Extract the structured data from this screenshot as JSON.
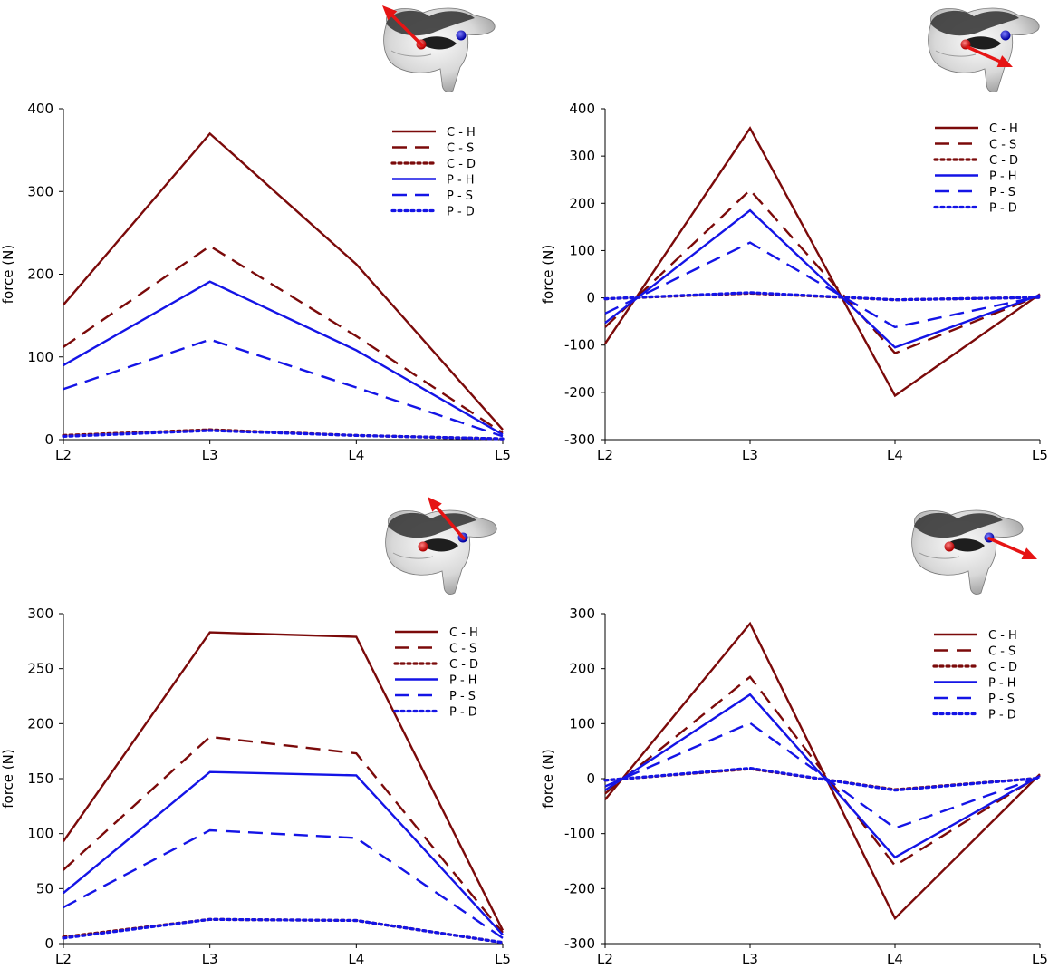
{
  "colors": {
    "C": "#7b0a0a",
    "P": "#1414e6",
    "arrow": "#e61414",
    "axis": "#000000"
  },
  "chart_data": [
    {
      "type": "line",
      "categories": [
        "L2",
        "L3",
        "L4",
        "L5"
      ],
      "ylabel": "force (N)",
      "ylim": [
        0,
        400
      ],
      "yticks": [
        0,
        100,
        200,
        300,
        400
      ],
      "legend_position": "top-right",
      "series": [
        {
          "name": "C - H",
          "group": "C",
          "style": "solid",
          "values": [
            163,
            370,
            212,
            12
          ]
        },
        {
          "name": "C - S",
          "group": "C",
          "style": "dashed",
          "values": [
            112,
            234,
            125,
            8
          ]
        },
        {
          "name": "C - D",
          "group": "C",
          "style": "dotted",
          "values": [
            5,
            12,
            5,
            1
          ]
        },
        {
          "name": "P - H",
          "group": "P",
          "style": "solid",
          "values": [
            90,
            191,
            108,
            6
          ]
        },
        {
          "name": "P - S",
          "group": "P",
          "style": "dashed",
          "values": [
            61,
            121,
            63,
            4
          ]
        },
        {
          "name": "P - D",
          "group": "P",
          "style": "dotted",
          "values": [
            4,
            11,
            5,
            1
          ]
        }
      ]
    },
    {
      "type": "line",
      "categories": [
        "L2",
        "L3",
        "L4",
        "L5"
      ],
      "ylabel": "force (N)",
      "ylim": [
        -300,
        400
      ],
      "yticks": [
        -300,
        -200,
        -100,
        0,
        100,
        200,
        300,
        400
      ],
      "legend_position": "top-right",
      "series": [
        {
          "name": "C - H",
          "group": "C",
          "style": "solid",
          "values": [
            -97,
            359,
            -207,
            8
          ]
        },
        {
          "name": "C - S",
          "group": "C",
          "style": "dashed",
          "values": [
            -62,
            228,
            -117,
            5
          ]
        },
        {
          "name": "C - D",
          "group": "C",
          "style": "dotted",
          "values": [
            -2,
            10,
            -4,
            1
          ]
        },
        {
          "name": "P - H",
          "group": "P",
          "style": "solid",
          "values": [
            -53,
            185,
            -105,
            6
          ]
        },
        {
          "name": "P - S",
          "group": "P",
          "style": "dashed",
          "values": [
            -33,
            117,
            -62,
            3
          ]
        },
        {
          "name": "P - D",
          "group": "P",
          "style": "dotted",
          "values": [
            -2,
            11,
            -4,
            1
          ]
        }
      ]
    },
    {
      "type": "line",
      "categories": [
        "L2",
        "L3",
        "L4",
        "L5"
      ],
      "ylabel": "force (N)",
      "ylim": [
        0,
        300
      ],
      "yticks": [
        0,
        50,
        100,
        150,
        200,
        250,
        300
      ],
      "legend_position": "top-right",
      "series": [
        {
          "name": "C - H",
          "group": "C",
          "style": "solid",
          "values": [
            93,
            283,
            279,
            12
          ]
        },
        {
          "name": "C - S",
          "group": "C",
          "style": "dashed",
          "values": [
            67,
            188,
            173,
            10
          ]
        },
        {
          "name": "C - D",
          "group": "C",
          "style": "dotted",
          "values": [
            6,
            22,
            21,
            1
          ]
        },
        {
          "name": "P - H",
          "group": "P",
          "style": "solid",
          "values": [
            46,
            156,
            153,
            8
          ]
        },
        {
          "name": "P - S",
          "group": "P",
          "style": "dashed",
          "values": [
            33,
            103,
            96,
            5
          ]
        },
        {
          "name": "P - D",
          "group": "P",
          "style": "dotted",
          "values": [
            5,
            22,
            21,
            1
          ]
        }
      ]
    },
    {
      "type": "line",
      "categories": [
        "L2",
        "L3",
        "L4",
        "L5"
      ],
      "ylabel": "force (N)",
      "ylim": [
        -300,
        300
      ],
      "yticks": [
        -300,
        -200,
        -100,
        0,
        100,
        200,
        300
      ],
      "legend_position": "top-right",
      "series": [
        {
          "name": "C - H",
          "group": "C",
          "style": "solid",
          "values": [
            -38,
            282,
            -254,
            8
          ]
        },
        {
          "name": "C - S",
          "group": "C",
          "style": "dashed",
          "values": [
            -27,
            185,
            -158,
            6
          ]
        },
        {
          "name": "C - D",
          "group": "C",
          "style": "dotted",
          "values": [
            -3,
            18,
            -20,
            1
          ]
        },
        {
          "name": "P - H",
          "group": "P",
          "style": "solid",
          "values": [
            -21,
            153,
            -143,
            5
          ]
        },
        {
          "name": "P - S",
          "group": "P",
          "style": "dashed",
          "values": [
            -14,
            101,
            -90,
            3
          ]
        },
        {
          "name": "P - D",
          "group": "P",
          "style": "dotted",
          "values": [
            -3,
            19,
            -21,
            1
          ]
        }
      ]
    }
  ]
}
